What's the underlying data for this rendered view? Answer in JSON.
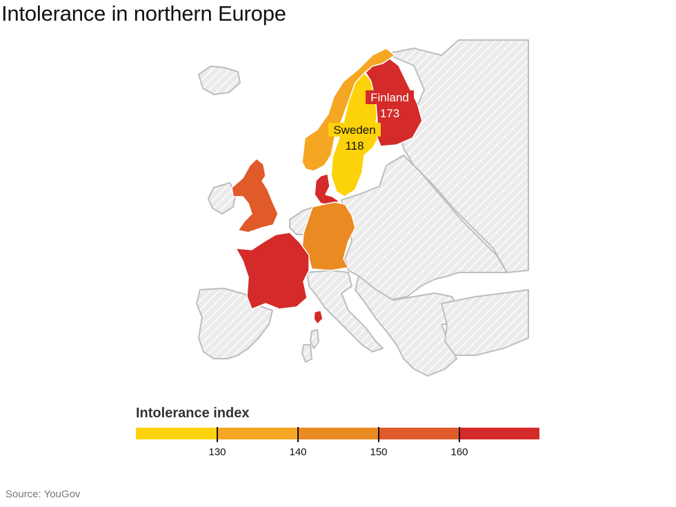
{
  "title": "Intolerance in northern Europe",
  "countries": [
    {
      "name": "Finland",
      "value": 173,
      "color": "#d42a2a",
      "labeled": true
    },
    {
      "name": "Sweden",
      "value": 118,
      "color": "#fcd30a",
      "labeled": true
    },
    {
      "name": "Norway",
      "color": "#f5a623"
    },
    {
      "name": "Denmark",
      "color": "#d42a2a"
    },
    {
      "name": "United Kingdom",
      "color": "#e05a2a"
    },
    {
      "name": "France",
      "color": "#d42a2a"
    },
    {
      "name": "Germany",
      "color": "#ea8a22"
    }
  ],
  "nodata_fill": "#ecebeb",
  "legend": {
    "title": "Intolerance index",
    "colors": [
      "#fcd30a",
      "#f5a623",
      "#ea8a22",
      "#e05a2a",
      "#d42a2a"
    ],
    "ticks": [
      130,
      140,
      150,
      160
    ]
  },
  "source": "Source: YouGov"
}
